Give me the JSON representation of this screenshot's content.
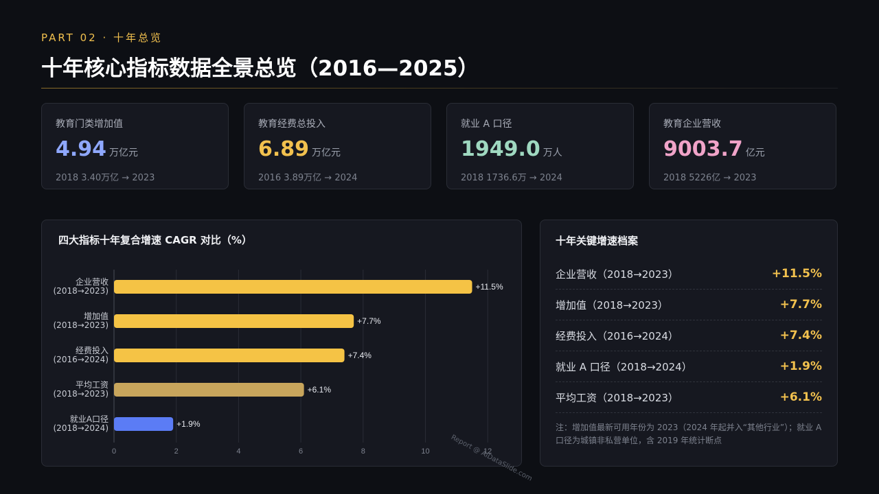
{
  "header": {
    "eyebrow": "PART 02 · 十年总览",
    "title": "十年核心指标数据全景总览（2016—2025）"
  },
  "kpis": [
    {
      "label": "教育门类增加值",
      "value": "4.94",
      "unit": "万亿元",
      "sub": "2018 3.40万亿 → 2023",
      "color": "#8fa8ff"
    },
    {
      "label": "教育经费总投入",
      "value": "6.89",
      "unit": "万亿元",
      "sub": "2016 3.89万亿 → 2024",
      "color": "#f2c14e"
    },
    {
      "label": "就业 A 口径",
      "value": "1949.0",
      "unit": "万人",
      "sub": "2018 1736.6万 → 2024",
      "color": "#9fd8c0"
    },
    {
      "label": "教育企业营收",
      "value": "9003.7",
      "unit": "亿元",
      "sub": "2018 5226亿 → 2023",
      "color": "#f0a3c8"
    }
  ],
  "chart_title": "四大指标十年复合增速 CAGR 对比（%）",
  "watermark": "Report @ AIDataSlide.com",
  "chart_data": {
    "type": "bar",
    "orientation": "horizontal",
    "categories": [
      [
        "企业营收",
        "(2018→2023)"
      ],
      [
        "增加值",
        "(2018→2023)"
      ],
      [
        "经费投入",
        "(2016→2024)"
      ],
      [
        "平均工资",
        "(2018→2023)"
      ],
      [
        "就业A口径",
        "(2018→2024)"
      ]
    ],
    "values": [
      11.5,
      7.7,
      7.4,
      6.1,
      1.9
    ],
    "data_labels": [
      "+11.5%",
      "+7.7%",
      "+7.4%",
      "+6.1%",
      "+1.9%"
    ],
    "bar_colors": [
      "#f5c345",
      "#f5c345",
      "#f5c345",
      "#c8a55c",
      "#5b7cf5"
    ],
    "xlim": [
      0,
      12.9
    ],
    "xticks": [
      0,
      2,
      4,
      6,
      8,
      10,
      12
    ],
    "grid": true,
    "legend": "none"
  },
  "list": {
    "title": "十年关键增速档案",
    "rows": [
      {
        "label": "企业营收（2018→2023）",
        "value": "+11.5%"
      },
      {
        "label": "增加值（2018→2023）",
        "value": "+7.7%"
      },
      {
        "label": "经费投入（2016→2024）",
        "value": "+7.4%"
      },
      {
        "label": "就业 A 口径（2018→2024）",
        "value": "+1.9%"
      },
      {
        "label": "平均工资（2018→2023）",
        "value": "+6.1%"
      }
    ],
    "note": "注：增加值最新可用年份为 2023（2024 年起并入“其他行业”）；就业 A 口径为城镇非私营单位，含 2019 年统计断点"
  }
}
